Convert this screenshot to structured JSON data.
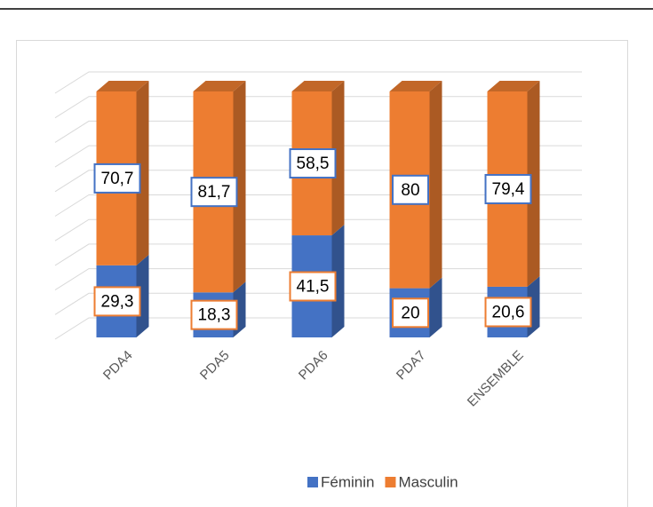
{
  "chart_data": {
    "type": "bar3d_stacked",
    "categories": [
      "PDA4",
      "PDA5",
      "PDA6",
      "PDA7",
      "ENSEMBLE"
    ],
    "series": [
      {
        "name": "Féminin",
        "color": "#4472c4",
        "values": [
          29.3,
          18.3,
          41.5,
          20,
          20.6
        ],
        "value_labels": [
          "29,3",
          "18,3",
          "41,5",
          "20",
          "20,6"
        ]
      },
      {
        "name": "Masculin",
        "color": "#ed7d31",
        "values": [
          70.7,
          81.7,
          58.5,
          80,
          79.4
        ],
        "value_labels": [
          "70,7",
          "81,7",
          "58,5",
          "80",
          "79,4"
        ]
      }
    ],
    "ylim": [
      0,
      100
    ],
    "yticks": [
      0,
      10,
      20,
      30,
      40,
      50,
      60,
      70,
      80,
      90,
      100
    ],
    "grid": true,
    "legend": "bottom"
  }
}
